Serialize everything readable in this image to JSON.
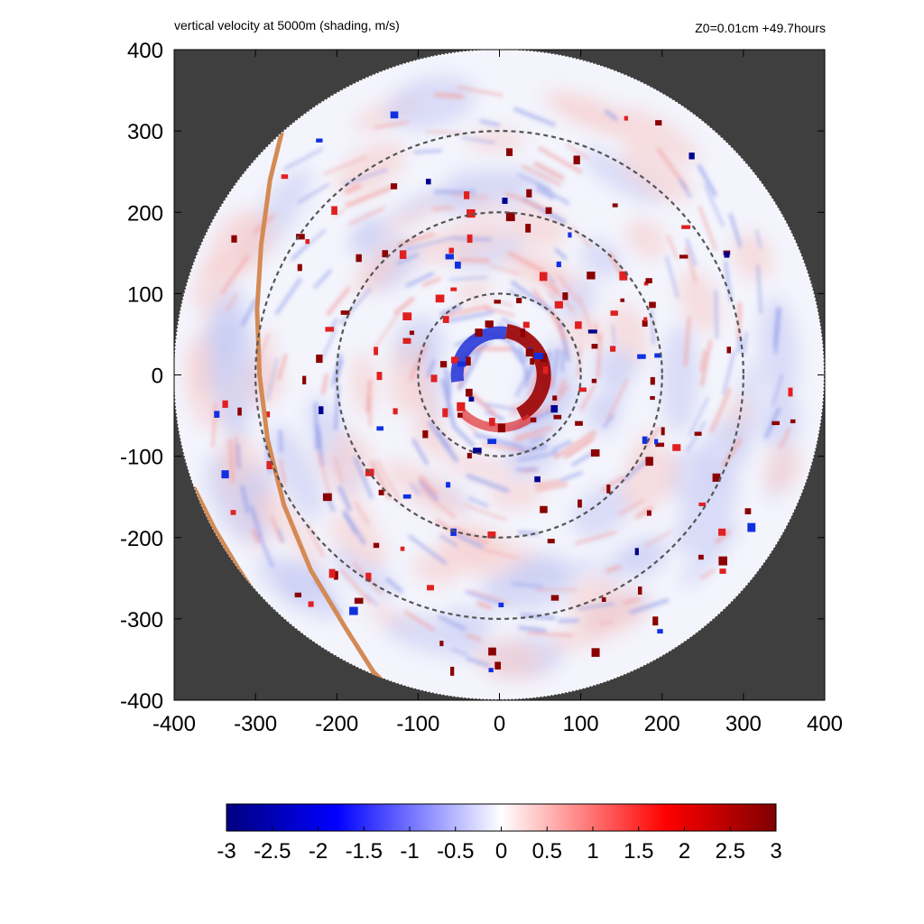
{
  "chart_data": {
    "type": "heatmap",
    "title": "vertical velocity at 5000m (shading, m/s)",
    "subtitle": "Z0=0.01cm  +49.7hours",
    "xlabel": "",
    "ylabel": "",
    "xlim": [
      -400,
      400
    ],
    "ylim": [
      -400,
      400
    ],
    "x_ticks": [
      -400,
      -300,
      -200,
      -100,
      0,
      100,
      200,
      300,
      400
    ],
    "y_ticks": [
      -400,
      -300,
      -200,
      -100,
      0,
      100,
      200,
      300,
      400
    ],
    "x_tick_labels": [
      "-400",
      "-300",
      "-200",
      "-100",
      "0",
      "100",
      "200",
      "300",
      "400"
    ],
    "y_tick_labels": [
      "400",
      "300",
      "200",
      "100",
      "0",
      "-100",
      "-200",
      "-300",
      "-400"
    ],
    "domain_radius": 400,
    "range_rings_radii": [
      100,
      200,
      300
    ],
    "colorbar": {
      "min": -3,
      "max": 3,
      "tick_values": [
        -3,
        -2.5,
        -2,
        -1.5,
        -1,
        -0.5,
        0,
        0.5,
        1,
        1.5,
        2,
        2.5,
        3
      ],
      "tick_labels": [
        "-3",
        "-2.5",
        "-2",
        "-1.5",
        "-1",
        "-0.5",
        "0",
        "0.5",
        "1",
        "1.5",
        "2",
        "2.5",
        "3"
      ],
      "colors": [
        "#00007f",
        "#0000ff",
        "#ffffff",
        "#ff0000",
        "#7f0000"
      ]
    },
    "coastline_color": "#d48a54",
    "coastlines": [
      [
        [
          -268,
          297
        ],
        [
          -282,
          240
        ],
        [
          -293,
          160
        ],
        [
          -298,
          80
        ],
        [
          -295,
          0
        ],
        [
          -285,
          -80
        ],
        [
          -265,
          -160
        ],
        [
          -232,
          -240
        ],
        [
          -190,
          -310
        ],
        [
          -155,
          -365
        ],
        [
          -120,
          -400
        ]
      ],
      [
        [
          -375,
          -140
        ],
        [
          -350,
          -190
        ],
        [
          -320,
          -240
        ],
        [
          -290,
          -285
        ],
        [
          -255,
          -330
        ],
        [
          -215,
          -370
        ],
        [
          -182,
          -400
        ]
      ]
    ],
    "background_color": "#3f3f3f"
  }
}
